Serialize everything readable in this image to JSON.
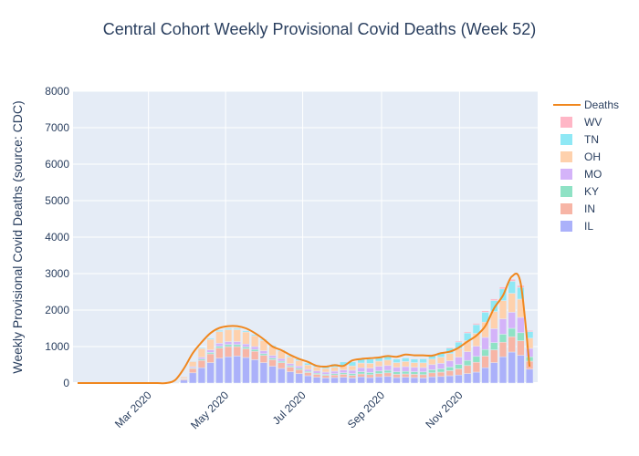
{
  "chart_data": {
    "type": "bar",
    "title": "Central Cohort Weekly Provisional Covid Deaths (Week 52)",
    "ylabel": "Weekly Provisional Covid Deaths (source: CDC)",
    "xlabel": "",
    "ylim": [
      0,
      8000
    ],
    "yticks": [
      0,
      1000,
      2000,
      3000,
      4000,
      5000,
      6000,
      7000,
      8000
    ],
    "xticks": [
      {
        "label": "Mar 2020",
        "week": 9
      },
      {
        "label": "May 2020",
        "week": 17.7
      },
      {
        "label": "Jul 2020",
        "week": 26.4
      },
      {
        "label": "Sep 2020",
        "week": 35.3
      },
      {
        "label": "Nov 2020",
        "week": 44.1
      }
    ],
    "x_weeks": [
      1,
      2,
      3,
      4,
      5,
      6,
      7,
      8,
      9,
      10,
      11,
      12,
      13,
      14,
      15,
      16,
      17,
      18,
      19,
      20,
      21,
      22,
      23,
      24,
      25,
      26,
      27,
      28,
      29,
      30,
      31,
      32,
      33,
      34,
      35,
      36,
      37,
      38,
      39,
      40,
      41,
      42,
      43,
      44,
      45,
      46,
      47,
      48,
      49,
      50,
      51,
      52
    ],
    "legend_position": "right",
    "series": [
      {
        "name": "IL",
        "color": "#abb1fa",
        "values": [
          0,
          0,
          0,
          0,
          0,
          0,
          0,
          0,
          0,
          0,
          0,
          5,
          80,
          280,
          420,
          560,
          680,
          720,
          740,
          700,
          640,
          560,
          460,
          400,
          310,
          260,
          200,
          160,
          140,
          150,
          160,
          140,
          170,
          150,
          170,
          180,
          150,
          160,
          150,
          140,
          170,
          180,
          200,
          220,
          260,
          300,
          420,
          560,
          720,
          850,
          760,
          380
        ]
      },
      {
        "name": "IN",
        "color": "#f7b5a6",
        "values": [
          0,
          0,
          0,
          0,
          0,
          0,
          0,
          0,
          0,
          0,
          0,
          2,
          30,
          120,
          200,
          240,
          280,
          280,
          260,
          240,
          230,
          200,
          180,
          160,
          130,
          110,
          90,
          80,
          70,
          70,
          80,
          70,
          80,
          80,
          90,
          100,
          90,
          90,
          90,
          90,
          110,
          120,
          140,
          170,
          220,
          270,
          320,
          350,
          400,
          420,
          400,
          220
        ]
      },
      {
        "name": "KY",
        "color": "#8fe2c5",
        "values": [
          0,
          0,
          0,
          0,
          0,
          0,
          0,
          0,
          0,
          0,
          0,
          1,
          8,
          20,
          35,
          40,
          50,
          55,
          55,
          50,
          50,
          45,
          45,
          40,
          35,
          35,
          30,
          30,
          30,
          35,
          40,
          50,
          60,
          60,
          70,
          70,
          70,
          70,
          70,
          75,
          85,
          90,
          100,
          120,
          140,
          160,
          180,
          200,
          220,
          230,
          220,
          120
        ]
      },
      {
        "name": "MO",
        "color": "#d4b3f9",
        "values": [
          0,
          0,
          0,
          0,
          0,
          0,
          0,
          0,
          0,
          0,
          0,
          1,
          10,
          30,
          50,
          70,
          80,
          80,
          80,
          80,
          80,
          80,
          70,
          70,
          60,
          60,
          55,
          60,
          60,
          70,
          80,
          90,
          110,
          120,
          130,
          130,
          120,
          130,
          120,
          120,
          140,
          150,
          170,
          200,
          240,
          280,
          330,
          380,
          420,
          440,
          420,
          230
        ]
      },
      {
        "name": "OH",
        "color": "#fed1ad",
        "values": [
          0,
          0,
          0,
          0,
          0,
          0,
          0,
          0,
          0,
          0,
          0,
          3,
          40,
          140,
          240,
          290,
          320,
          330,
          330,
          330,
          300,
          280,
          250,
          210,
          180,
          150,
          120,
          110,
          100,
          110,
          120,
          120,
          130,
          130,
          140,
          150,
          130,
          140,
          130,
          130,
          150,
          170,
          200,
          240,
          300,
          350,
          420,
          470,
          500,
          520,
          500,
          280
        ]
      },
      {
        "name": "TN",
        "color": "#8fe8f5",
        "values": [
          0,
          0,
          0,
          0,
          0,
          0,
          0,
          0,
          0,
          0,
          0,
          1,
          6,
          15,
          25,
          30,
          35,
          35,
          35,
          35,
          35,
          30,
          30,
          30,
          35,
          40,
          50,
          60,
          75,
          90,
          100,
          110,
          120,
          120,
          110,
          110,
          100,
          100,
          100,
          110,
          120,
          130,
          150,
          170,
          210,
          240,
          270,
          300,
          320,
          330,
          320,
          180
        ]
      },
      {
        "name": "WV",
        "color": "#ffb6c6",
        "values": [
          0,
          0,
          0,
          0,
          0,
          0,
          0,
          0,
          0,
          0,
          0,
          0,
          1,
          3,
          5,
          7,
          8,
          8,
          8,
          8,
          7,
          7,
          6,
          5,
          5,
          5,
          5,
          5,
          5,
          5,
          6,
          7,
          8,
          9,
          10,
          12,
          12,
          13,
          14,
          15,
          18,
          20,
          24,
          28,
          32,
          36,
          40,
          44,
          50,
          55,
          55,
          30
        ]
      }
    ],
    "line": {
      "name": "Deaths",
      "color": "#f0871e",
      "values": [
        0,
        0,
        0,
        0,
        0,
        0,
        0,
        0,
        0,
        0,
        0,
        80,
        400,
        820,
        1120,
        1370,
        1510,
        1560,
        1560,
        1500,
        1370,
        1200,
        1000,
        900,
        770,
        660,
        580,
        470,
        450,
        490,
        470,
        620,
        660,
        680,
        700,
        740,
        720,
        780,
        760,
        760,
        750,
        820,
        860,
        970,
        1140,
        1300,
        1560,
        2050,
        2400,
        2920,
        2730,
        450
      ]
    }
  }
}
